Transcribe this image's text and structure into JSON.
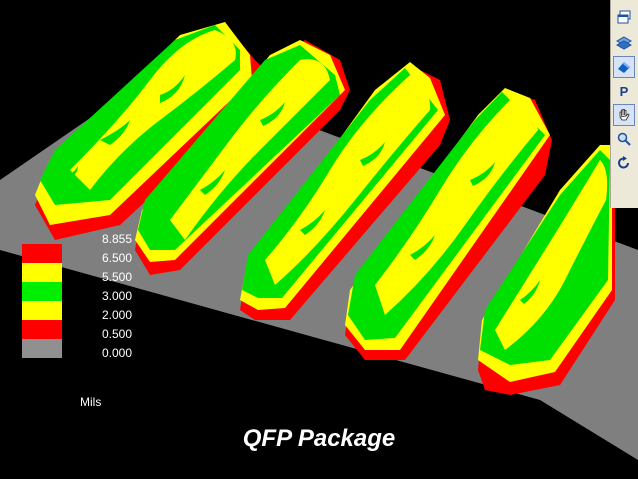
{
  "title": "QFP Package",
  "units": "Mils",
  "legend": {
    "labels": [
      "8.855",
      "6.500",
      "5.500",
      "3.000",
      "2.000",
      "0.500",
      "0.000"
    ],
    "colors": [
      "#ff0000",
      "#ffff00",
      "#00ee00",
      "#ffff00",
      "#ff0000",
      "#909090"
    ]
  },
  "palette": {
    "background": "#000000",
    "board": "#7f7f7f",
    "red": "#ff0000",
    "yellow": "#ffff00",
    "green": "#00e000"
  },
  "toolbar": {
    "icons": [
      "window-icon",
      "layers-icon",
      "shaded-surface-icon",
      "p-icon",
      "hand-pan-icon",
      "zoom-icon",
      "rotate-icon"
    ],
    "p_label": "P"
  }
}
